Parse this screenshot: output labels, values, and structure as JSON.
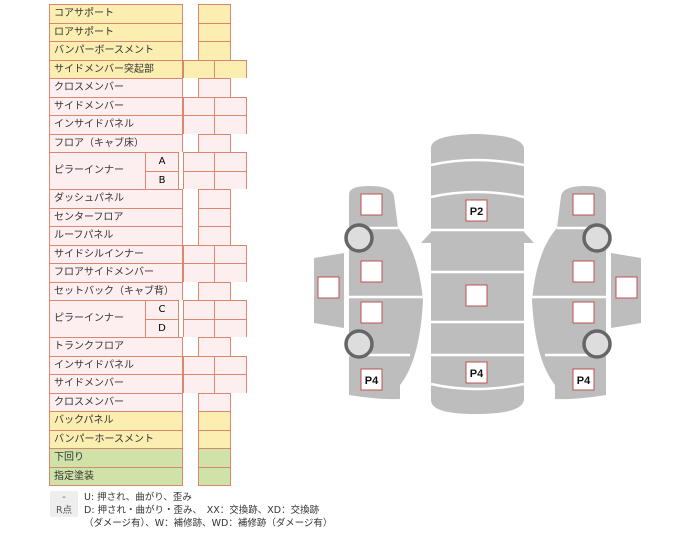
{
  "colors": {
    "yellow": "#fbeeb0",
    "pink": "#fdeef0",
    "green": "#cfe3a8",
    "border": "#d9876f",
    "car": "#bdbdbd"
  },
  "rows": [
    {
      "label": "コアサポート",
      "color": "y",
      "cells": 1
    },
    {
      "label": "ロアサポート",
      "color": "y",
      "cells": 1
    },
    {
      "label": "バンパーボースメント",
      "color": "y",
      "cells": 1
    },
    {
      "label": "サイドメンバー突起部",
      "color": "y",
      "cells": 2
    },
    {
      "label": "クロスメンバー",
      "color": "p",
      "cells": 1
    },
    {
      "label": "サイドメンバー",
      "color": "p",
      "cells": 2
    },
    {
      "label": "インサイドパネル",
      "color": "p",
      "cells": 2
    },
    {
      "label": "フロア（キャブ床）",
      "color": "p",
      "cells": 1
    },
    {
      "label": "ピラーインナー",
      "color": "p",
      "cells": 2,
      "sub": "A",
      "group": "start"
    },
    {
      "label": "",
      "color": "p",
      "cells": 2,
      "sub": "B",
      "group": "end"
    },
    {
      "label": "ダッシュパネル",
      "color": "p",
      "cells": 1
    },
    {
      "label": "センターフロア",
      "color": "p",
      "cells": 1
    },
    {
      "label": "ルーフパネル",
      "color": "p",
      "cells": 1
    },
    {
      "label": "サイドシルインナー",
      "color": "p",
      "cells": 2
    },
    {
      "label": "フロアサイドメンバー",
      "color": "p",
      "cells": 2
    },
    {
      "label": "セットバック（キャブ背）",
      "color": "p",
      "cells": 1
    },
    {
      "label": "ピラーインナー",
      "color": "p",
      "cells": 2,
      "sub": "C",
      "group": "start"
    },
    {
      "label": "",
      "color": "p",
      "cells": 2,
      "sub": "D",
      "group": "end"
    },
    {
      "label": "トランクフロア",
      "color": "p",
      "cells": 1
    },
    {
      "label": "インサイドパネル",
      "color": "p",
      "cells": 2
    },
    {
      "label": "サイドメンバー",
      "color": "p",
      "cells": 2
    },
    {
      "label": "クロスメンバー",
      "color": "p",
      "cells": 1
    },
    {
      "label": "バックパネル",
      "color": "y",
      "cells": 1
    },
    {
      "label": "バンパーホースメント",
      "color": "y",
      "cells": 1
    },
    {
      "label": "下回り",
      "color": "g",
      "cells": 1
    },
    {
      "label": "指定塗装",
      "color": "g",
      "cells": 1
    }
  ],
  "legend": [
    {
      "key": "-",
      "text": "U: 押され、曲がり、歪み"
    },
    {
      "key": "R点",
      "text": "D: 押され・曲がり・歪み、　XX：交換跡、XD：交換跡"
    },
    {
      "key": "",
      "text": "（ダメージ有）、W：補修跡、WD：補修跡（ダメージ有）"
    }
  ],
  "diagram": {
    "labels": {
      "roof": "P2",
      "trunk": "P4",
      "left_rear": "P4",
      "right_rear": "P4"
    }
  }
}
